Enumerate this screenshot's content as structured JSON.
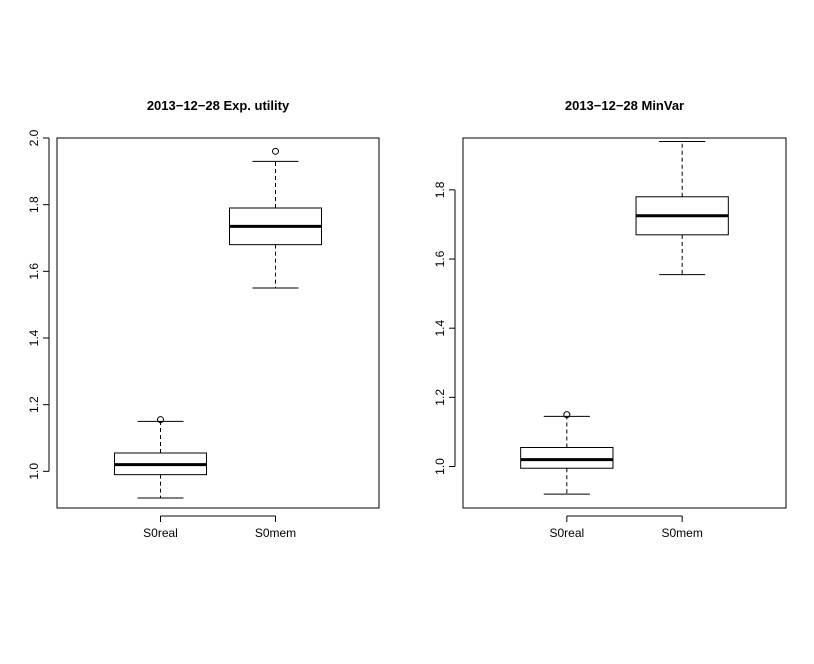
{
  "chart_data": [
    {
      "type": "box",
      "title": "2013−12−28 Exp. utility",
      "xlabel": "",
      "ylabel": "",
      "ylim": [
        0.89,
        2.0
      ],
      "yticks": [
        1.0,
        1.2,
        1.4,
        1.6,
        1.8,
        2.0
      ],
      "ytick_labels": [
        "1.0",
        "1.2",
        "1.4",
        "1.6",
        "1.8",
        "2.0"
      ],
      "categories": [
        "S0real",
        "S0mem"
      ],
      "boxes": [
        {
          "category": "S0real",
          "whisker_low": 0.92,
          "q1": 0.99,
          "median": 1.02,
          "q3": 1.055,
          "whisker_high": 1.15,
          "outliers": [
            1.155
          ]
        },
        {
          "category": "S0mem",
          "whisker_low": 1.55,
          "q1": 1.68,
          "median": 1.735,
          "q3": 1.79,
          "whisker_high": 1.93,
          "outliers": [
            1.96
          ]
        }
      ],
      "grid": false,
      "legend": "none"
    },
    {
      "type": "box",
      "title": "2013−12−28 MinVar",
      "xlabel": "",
      "ylabel": "",
      "ylim": [
        0.88,
        1.95
      ],
      "yticks": [
        1.0,
        1.2,
        1.4,
        1.6,
        1.8
      ],
      "ytick_labels": [
        "1.0",
        "1.2",
        "1.4",
        "1.6",
        "1.8"
      ],
      "categories": [
        "S0real",
        "S0mem"
      ],
      "boxes": [
        {
          "category": "S0real",
          "whisker_low": 0.92,
          "q1": 0.995,
          "median": 1.02,
          "q3": 1.055,
          "whisker_high": 1.145,
          "outliers": [
            1.15
          ]
        },
        {
          "category": "S0mem",
          "whisker_low": 1.555,
          "q1": 1.67,
          "median": 1.725,
          "q3": 1.78,
          "whisker_high": 1.94,
          "outliers": []
        }
      ],
      "grid": false,
      "legend": "none"
    }
  ]
}
